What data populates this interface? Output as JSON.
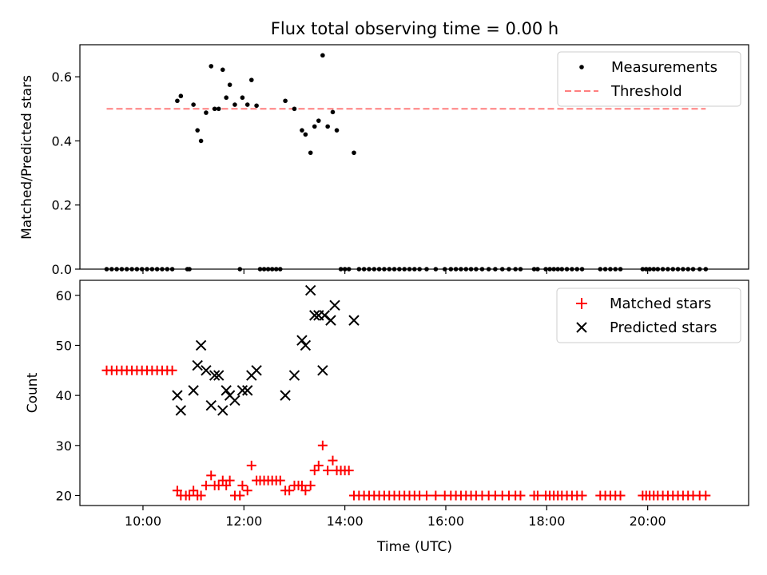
{
  "chart_data": {
    "title": "Flux total observing time = 0.00 h",
    "xlabel": "Time (UTC)",
    "x_unit": "hours UTC",
    "xlim": [
      8.75,
      22.0
    ],
    "xticks": [
      10,
      12,
      14,
      16,
      18,
      20
    ],
    "xtick_labels": [
      "10:00",
      "12:00",
      "14:00",
      "16:00",
      "18:00",
      "20:00"
    ],
    "top": {
      "type": "scatter",
      "ylabel": "Matched/Predicted stars",
      "ylim": [
        0,
        0.7
      ],
      "yticks": [
        0.0,
        0.2,
        0.4,
        0.6
      ],
      "ytick_labels": [
        "0.0",
        "0.2",
        "0.4",
        "0.6"
      ],
      "legend_position": "top-right",
      "series": [
        {
          "name": "Measurements",
          "color": "#000000",
          "marker": "dot",
          "points": [
            [
              9.28,
              0
            ],
            [
              9.38,
              0
            ],
            [
              9.48,
              0
            ],
            [
              9.58,
              0
            ],
            [
              9.68,
              0
            ],
            [
              9.78,
              0
            ],
            [
              9.88,
              0
            ],
            [
              9.98,
              0
            ],
            [
              10.08,
              0
            ],
            [
              10.18,
              0
            ],
            [
              10.28,
              0
            ],
            [
              10.38,
              0
            ],
            [
              10.48,
              0
            ],
            [
              10.58,
              0
            ],
            [
              10.68,
              0.525
            ],
            [
              10.75,
              0.54
            ],
            [
              10.88,
              0
            ],
            [
              10.92,
              0
            ],
            [
              11.0,
              0.513
            ],
            [
              11.08,
              0.433
            ],
            [
              11.15,
              0.4
            ],
            [
              11.25,
              0.488
            ],
            [
              11.35,
              0.633
            ],
            [
              11.42,
              0.5
            ],
            [
              11.5,
              0.5
            ],
            [
              11.58,
              0.622
            ],
            [
              11.65,
              0.535
            ],
            [
              11.72,
              0.575
            ],
            [
              11.82,
              0.513
            ],
            [
              11.92,
              0
            ],
            [
              11.97,
              0.535
            ],
            [
              12.07,
              0.513
            ],
            [
              12.15,
              0.59
            ],
            [
              12.25,
              0.51
            ],
            [
              12.32,
              0
            ],
            [
              12.4,
              0
            ],
            [
              12.48,
              0
            ],
            [
              12.56,
              0
            ],
            [
              12.64,
              0
            ],
            [
              12.72,
              0
            ],
            [
              12.82,
              0.525
            ],
            [
              13.0,
              0.5
            ],
            [
              13.15,
              0.433
            ],
            [
              13.22,
              0.42
            ],
            [
              13.32,
              0.363
            ],
            [
              13.4,
              0.445
            ],
            [
              13.48,
              0.463
            ],
            [
              13.56,
              0.667
            ],
            [
              13.66,
              0.445
            ],
            [
              13.76,
              0.49
            ],
            [
              13.84,
              0.433
            ],
            [
              13.92,
              0
            ],
            [
              14.0,
              0
            ],
            [
              14.08,
              0
            ],
            [
              14.18,
              0.363
            ],
            [
              14.28,
              0
            ],
            [
              14.38,
              0
            ],
            [
              14.48,
              0
            ],
            [
              14.58,
              0
            ],
            [
              14.68,
              0
            ],
            [
              14.78,
              0
            ],
            [
              14.88,
              0
            ],
            [
              14.98,
              0
            ],
            [
              15.08,
              0
            ],
            [
              15.18,
              0
            ],
            [
              15.28,
              0
            ],
            [
              15.38,
              0
            ],
            [
              15.48,
              0
            ],
            [
              15.62,
              0
            ],
            [
              15.8,
              0
            ],
            [
              15.98,
              0
            ],
            [
              16.1,
              0
            ],
            [
              16.2,
              0
            ],
            [
              16.3,
              0
            ],
            [
              16.4,
              0
            ],
            [
              16.5,
              0
            ],
            [
              16.6,
              0
            ],
            [
              16.72,
              0
            ],
            [
              16.85,
              0
            ],
            [
              16.98,
              0
            ],
            [
              17.12,
              0
            ],
            [
              17.25,
              0
            ],
            [
              17.38,
              0
            ],
            [
              17.48,
              0
            ],
            [
              17.75,
              0
            ],
            [
              17.82,
              0
            ],
            [
              17.98,
              0
            ],
            [
              18.06,
              0
            ],
            [
              18.14,
              0
            ],
            [
              18.22,
              0
            ],
            [
              18.3,
              0
            ],
            [
              18.4,
              0
            ],
            [
              18.5,
              0
            ],
            [
              18.6,
              0
            ],
            [
              18.7,
              0
            ],
            [
              19.06,
              0
            ],
            [
              19.16,
              0
            ],
            [
              19.26,
              0
            ],
            [
              19.36,
              0
            ],
            [
              19.46,
              0
            ],
            [
              19.9,
              0
            ],
            [
              19.97,
              0
            ],
            [
              20.04,
              0
            ],
            [
              20.12,
              0
            ],
            [
              20.2,
              0
            ],
            [
              20.3,
              0
            ],
            [
              20.4,
              0
            ],
            [
              20.5,
              0
            ],
            [
              20.6,
              0
            ],
            [
              20.7,
              0
            ],
            [
              20.8,
              0
            ],
            [
              20.9,
              0
            ],
            [
              21.03,
              0
            ],
            [
              21.15,
              0
            ]
          ]
        },
        {
          "name": "Threshold",
          "color": "#ff7f7f",
          "style": "dashed",
          "points": [
            [
              9.28,
              0.5
            ],
            [
              21.15,
              0.5
            ]
          ]
        }
      ]
    },
    "bottom": {
      "type": "scatter",
      "ylabel": "Count",
      "ylim": [
        18,
        63
      ],
      "yticks": [
        20,
        30,
        40,
        50,
        60
      ],
      "ytick_labels": [
        "20",
        "30",
        "40",
        "50",
        "60"
      ],
      "legend_position": "top-right",
      "series": [
        {
          "name": "Matched stars",
          "color": "#ff0000",
          "marker": "plus",
          "points": [
            [
              9.28,
              45
            ],
            [
              9.38,
              45
            ],
            [
              9.48,
              45
            ],
            [
              9.58,
              45
            ],
            [
              9.68,
              45
            ],
            [
              9.78,
              45
            ],
            [
              9.88,
              45
            ],
            [
              9.98,
              45
            ],
            [
              10.08,
              45
            ],
            [
              10.18,
              45
            ],
            [
              10.28,
              45
            ],
            [
              10.38,
              45
            ],
            [
              10.48,
              45
            ],
            [
              10.58,
              45
            ],
            [
              10.68,
              21
            ],
            [
              10.75,
              20
            ],
            [
              10.85,
              20
            ],
            [
              10.92,
              20
            ],
            [
              11.0,
              21
            ],
            [
              11.08,
              20
            ],
            [
              11.15,
              20
            ],
            [
              11.25,
              22
            ],
            [
              11.35,
              24
            ],
            [
              11.42,
              22
            ],
            [
              11.5,
              22
            ],
            [
              11.58,
              23
            ],
            [
              11.65,
              22
            ],
            [
              11.72,
              23
            ],
            [
              11.82,
              20
            ],
            [
              11.92,
              20
            ],
            [
              11.97,
              22
            ],
            [
              12.07,
              21
            ],
            [
              12.15,
              26
            ],
            [
              12.25,
              23
            ],
            [
              12.32,
              23
            ],
            [
              12.4,
              23
            ],
            [
              12.48,
              23
            ],
            [
              12.56,
              23
            ],
            [
              12.64,
              23
            ],
            [
              12.72,
              23
            ],
            [
              12.82,
              21
            ],
            [
              12.9,
              21
            ],
            [
              13.0,
              22
            ],
            [
              13.08,
              22
            ],
            [
              13.15,
              22
            ],
            [
              13.22,
              21
            ],
            [
              13.32,
              22
            ],
            [
              13.4,
              25
            ],
            [
              13.48,
              26
            ],
            [
              13.56,
              30
            ],
            [
              13.66,
              25
            ],
            [
              13.76,
              27
            ],
            [
              13.84,
              25
            ],
            [
              13.92,
              25
            ],
            [
              14.0,
              25
            ],
            [
              14.08,
              25
            ],
            [
              14.18,
              20
            ],
            [
              14.28,
              20
            ],
            [
              14.38,
              20
            ],
            [
              14.48,
              20
            ],
            [
              14.58,
              20
            ],
            [
              14.68,
              20
            ],
            [
              14.78,
              20
            ],
            [
              14.88,
              20
            ],
            [
              14.98,
              20
            ],
            [
              15.08,
              20
            ],
            [
              15.18,
              20
            ],
            [
              15.28,
              20
            ],
            [
              15.38,
              20
            ],
            [
              15.48,
              20
            ],
            [
              15.62,
              20
            ],
            [
              15.8,
              20
            ],
            [
              15.98,
              20
            ],
            [
              16.1,
              20
            ],
            [
              16.2,
              20
            ],
            [
              16.3,
              20
            ],
            [
              16.4,
              20
            ],
            [
              16.5,
              20
            ],
            [
              16.6,
              20
            ],
            [
              16.72,
              20
            ],
            [
              16.85,
              20
            ],
            [
              16.98,
              20
            ],
            [
              17.12,
              20
            ],
            [
              17.25,
              20
            ],
            [
              17.38,
              20
            ],
            [
              17.48,
              20
            ],
            [
              17.75,
              20
            ],
            [
              17.82,
              20
            ],
            [
              17.98,
              20
            ],
            [
              18.06,
              20
            ],
            [
              18.14,
              20
            ],
            [
              18.22,
              20
            ],
            [
              18.3,
              20
            ],
            [
              18.4,
              20
            ],
            [
              18.5,
              20
            ],
            [
              18.6,
              20
            ],
            [
              18.7,
              20
            ],
            [
              19.06,
              20
            ],
            [
              19.16,
              20
            ],
            [
              19.26,
              20
            ],
            [
              19.36,
              20
            ],
            [
              19.46,
              20
            ],
            [
              19.9,
              20
            ],
            [
              19.97,
              20
            ],
            [
              20.04,
              20
            ],
            [
              20.12,
              20
            ],
            [
              20.2,
              20
            ],
            [
              20.3,
              20
            ],
            [
              20.4,
              20
            ],
            [
              20.5,
              20
            ],
            [
              20.6,
              20
            ],
            [
              20.7,
              20
            ],
            [
              20.8,
              20
            ],
            [
              20.9,
              20
            ],
            [
              21.03,
              20
            ],
            [
              21.15,
              20
            ]
          ]
        },
        {
          "name": "Predicted stars",
          "color": "#000000",
          "marker": "x",
          "points": [
            [
              10.68,
              40
            ],
            [
              10.75,
              37
            ],
            [
              11.0,
              41
            ],
            [
              11.08,
              46
            ],
            [
              11.15,
              50
            ],
            [
              11.25,
              45
            ],
            [
              11.35,
              38
            ],
            [
              11.42,
              44
            ],
            [
              11.5,
              44
            ],
            [
              11.58,
              37
            ],
            [
              11.65,
              41
            ],
            [
              11.72,
              40
            ],
            [
              11.82,
              39
            ],
            [
              11.97,
              41
            ],
            [
              12.07,
              41
            ],
            [
              12.15,
              44
            ],
            [
              12.25,
              45
            ],
            [
              12.82,
              40
            ],
            [
              13.0,
              44
            ],
            [
              13.15,
              51
            ],
            [
              13.22,
              50
            ],
            [
              13.32,
              61
            ],
            [
              13.4,
              56
            ],
            [
              13.48,
              56
            ],
            [
              13.56,
              45
            ],
            [
              13.6,
              56
            ],
            [
              13.72,
              55
            ],
            [
              13.8,
              58
            ],
            [
              14.18,
              55
            ]
          ]
        }
      ]
    }
  }
}
